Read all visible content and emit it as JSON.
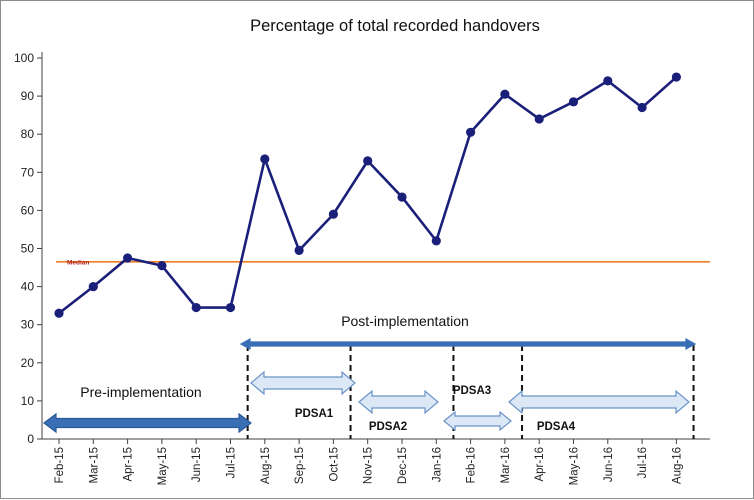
{
  "chart_data": {
    "type": "line",
    "title": "Percentage of total recorded handovers",
    "xlabel": "",
    "ylabel": "",
    "ylim": [
      0,
      100
    ],
    "yticks": [
      0,
      10,
      20,
      30,
      40,
      50,
      60,
      70,
      80,
      90,
      100
    ],
    "categories": [
      "Feb-15",
      "Mar-15",
      "Apr-15",
      "May-15",
      "Jun-15",
      "Jul-15",
      "Aug-15",
      "Sep-15",
      "Oct-15",
      "Nov-15",
      "Dec-15",
      "Jan-16",
      "Feb-16",
      "Mar-16",
      "Apr-16",
      "May-16",
      "Jun-16",
      "Jul-16",
      "Aug-16"
    ],
    "series": [
      {
        "name": "",
        "color": "#1a1f7a",
        "values": [
          33,
          40,
          47.5,
          45.5,
          34.5,
          34.5,
          73.5,
          49.5,
          59,
          73,
          63.5,
          52,
          80.5,
          90.5,
          84,
          88.5,
          94,
          87,
          95
        ]
      }
    ],
    "median": {
      "label": "Median",
      "value": 46.5,
      "color": "#f07c20"
    },
    "grid": false,
    "legend": "none",
    "annotations": {
      "pre_label": "Pre-implementation",
      "post_label": "Post-implementation",
      "phases": [
        {
          "label": "PDSA1",
          "from": "Jul-15",
          "to": "Oct-15"
        },
        {
          "label": "PDSA2",
          "from": "Oct-15",
          "to": "Jan-16"
        },
        {
          "label": "PDSA3",
          "from": "Jan-16",
          "to": "Mar-16"
        },
        {
          "label": "PDSA4",
          "from": "Mar-16",
          "to": "Aug-16"
        }
      ],
      "dark_arrow_color": "#3a6eb5",
      "light_arrow_fill": "#dce8f5",
      "light_arrow_stroke": "#6a93c8"
    }
  }
}
